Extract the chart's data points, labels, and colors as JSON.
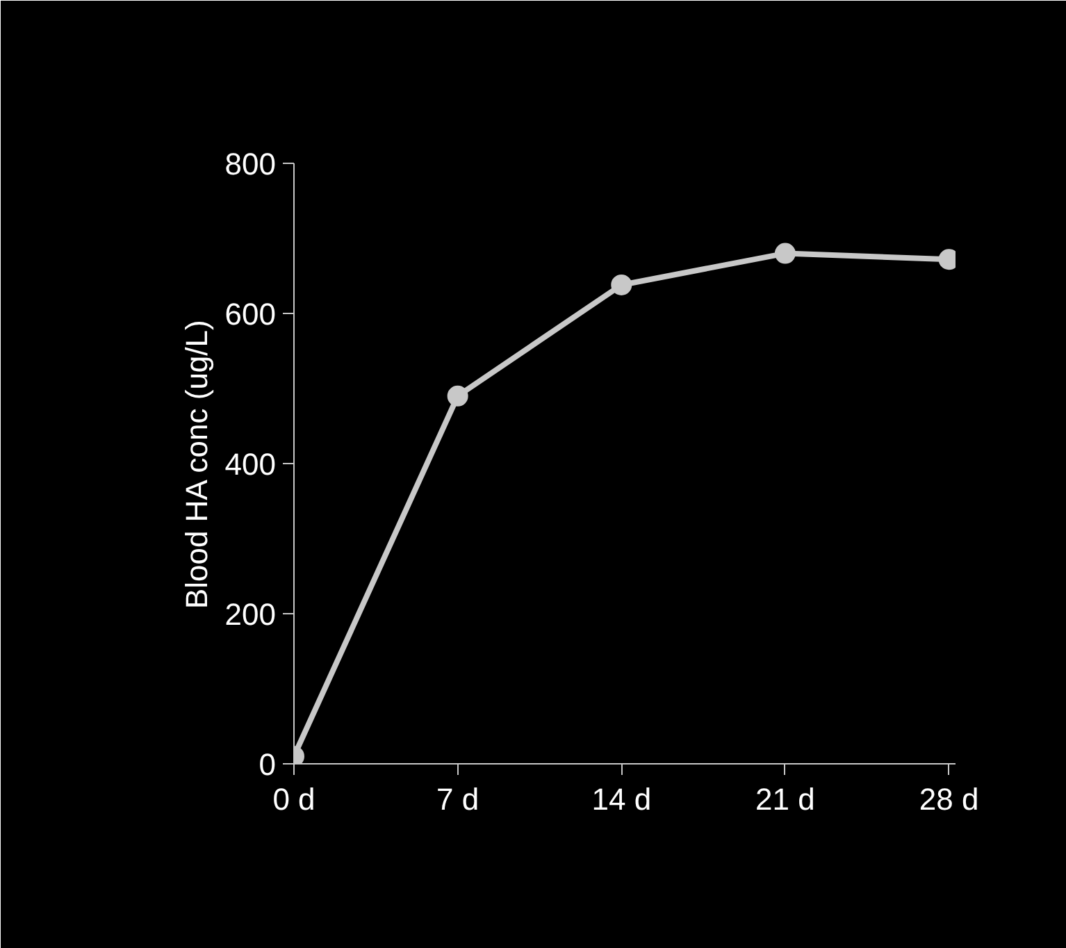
{
  "chart_data": {
    "type": "line",
    "ylabel": "Blood HA conc (ug/L)",
    "categories": [
      "0 d",
      "7 d",
      "14 d",
      "21 d",
      "28 d"
    ],
    "series": [
      {
        "color": "#c8c8c8",
        "values": [
          10,
          490,
          638,
          680,
          672
        ]
      }
    ],
    "ylim": [
      0,
      800
    ],
    "yticks": [
      0,
      200,
      400,
      600,
      800
    ],
    "grid": false,
    "marker": "circle",
    "line_style": "solid"
  }
}
